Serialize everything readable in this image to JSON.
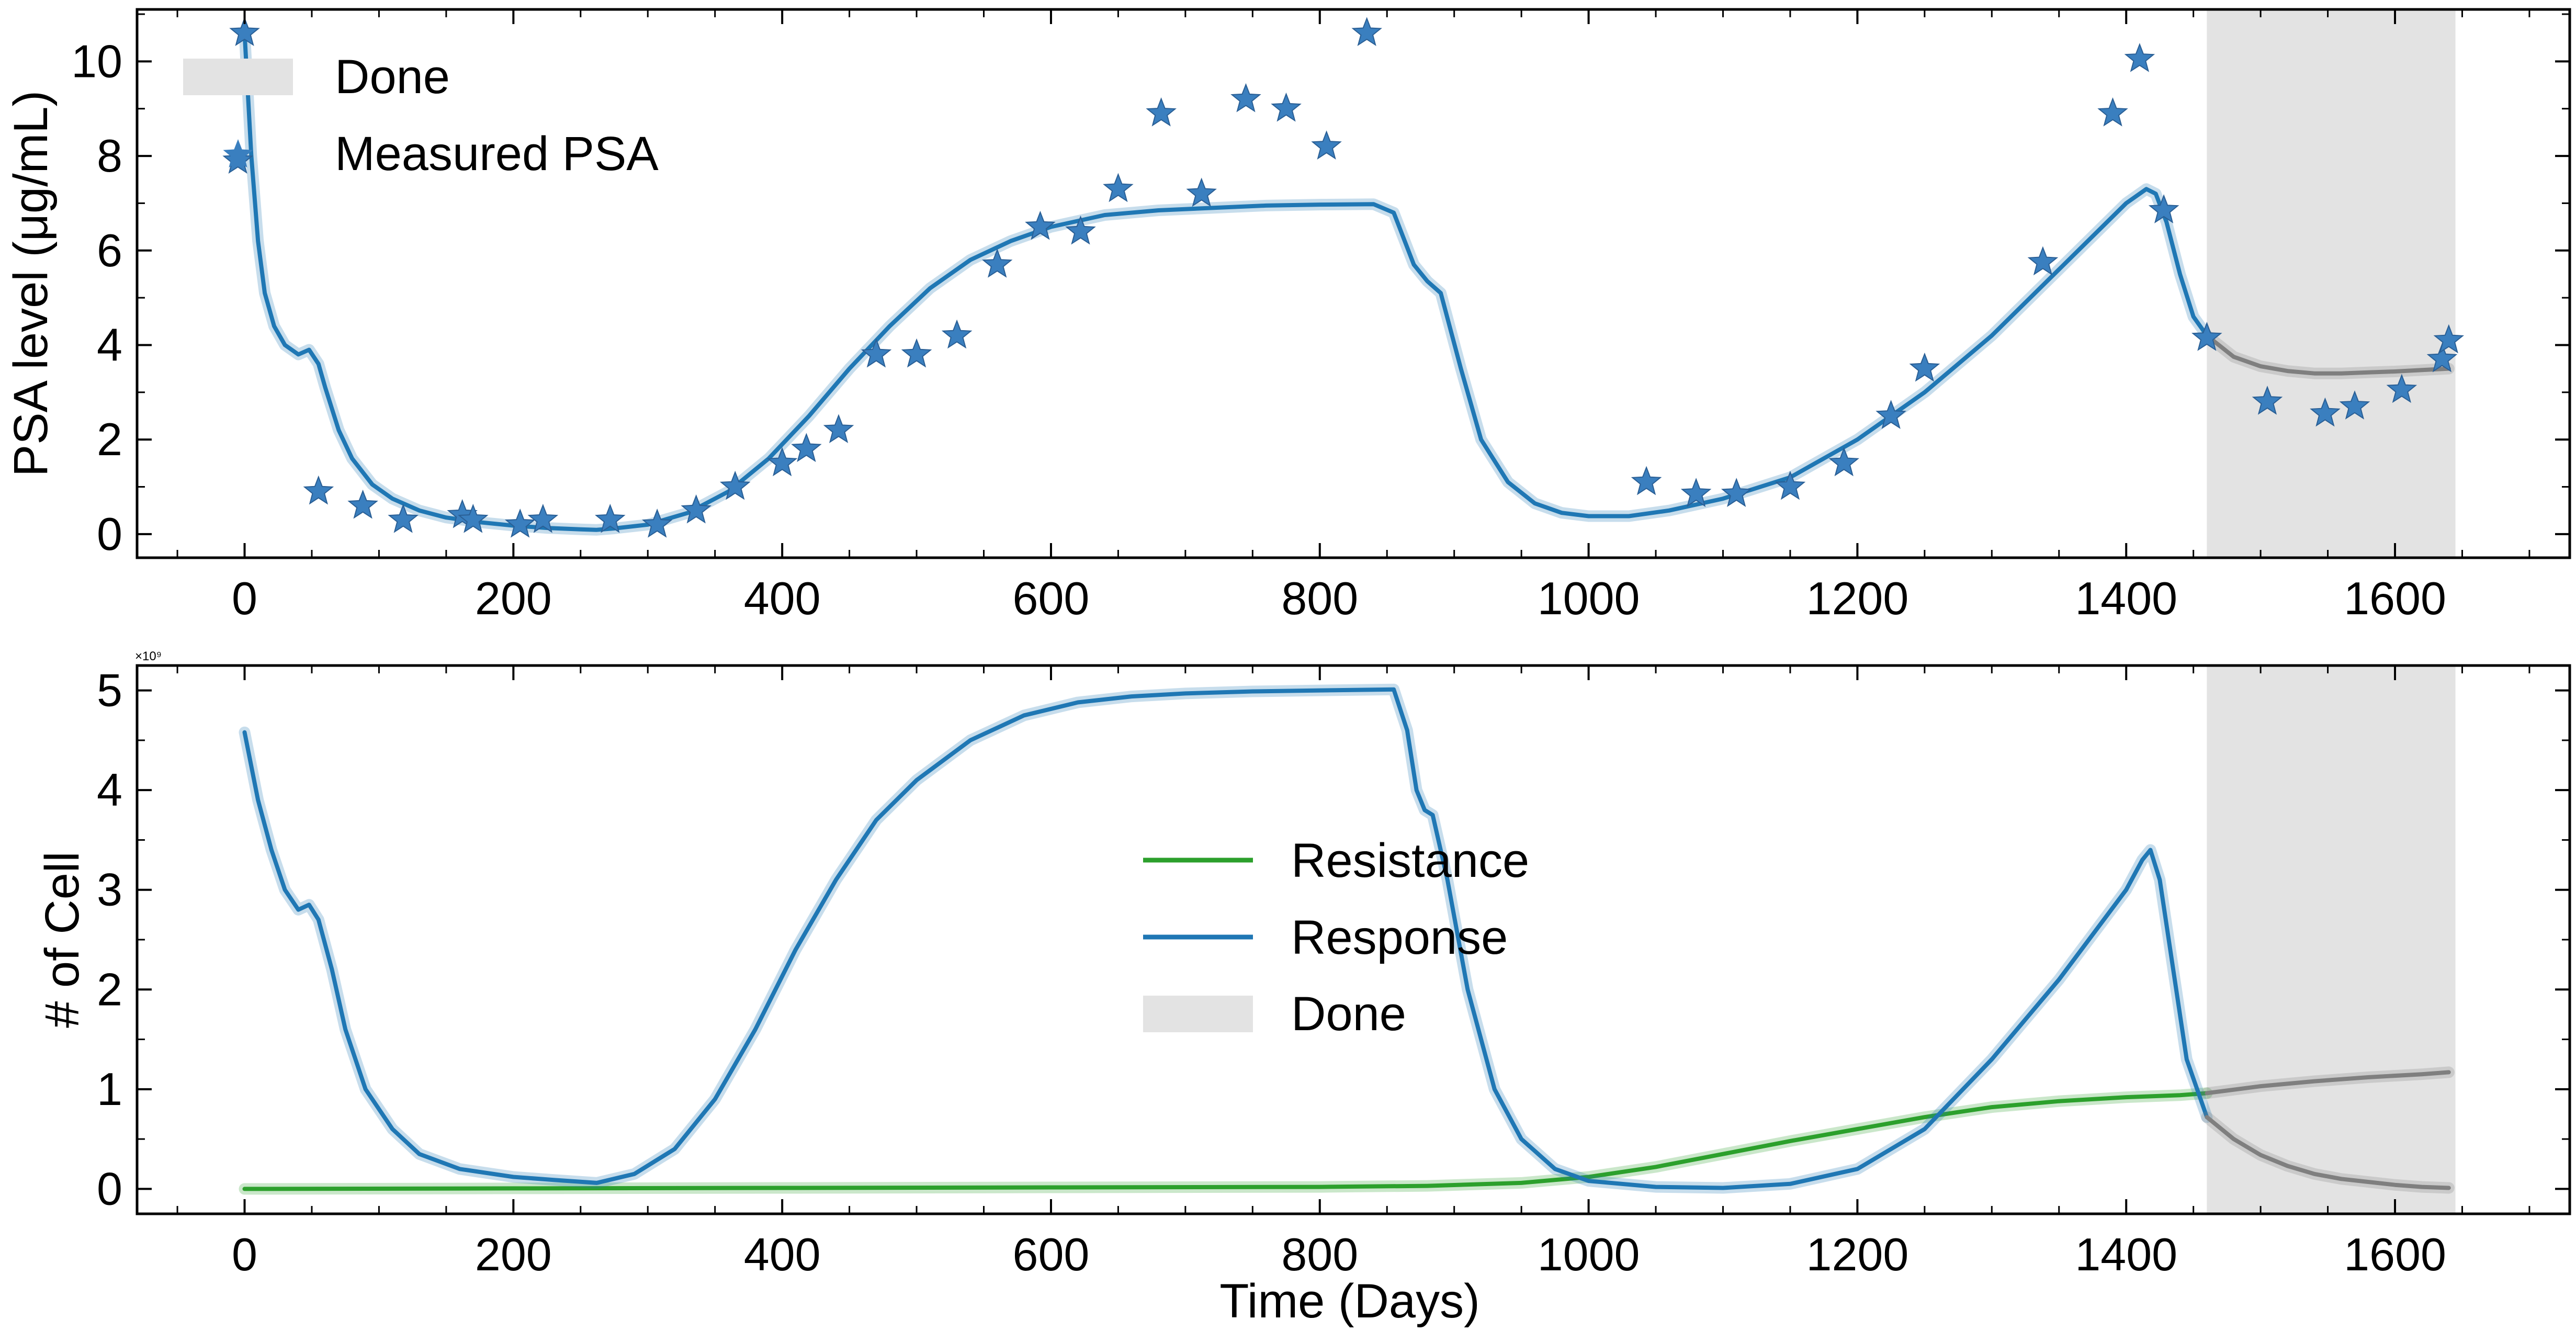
{
  "chart_data": [
    {
      "type": "line",
      "panel": "top",
      "xlabel": "",
      "ylabel": "PSA level (μg/mL)",
      "xlim": [
        -80,
        1730
      ],
      "ylim": [
        -0.5,
        11.1
      ],
      "xticks": [
        0,
        200,
        400,
        600,
        800,
        1000,
        1200,
        1400,
        1600
      ],
      "yticks": [
        0,
        2,
        4,
        6,
        8,
        10
      ],
      "grid": false,
      "legend_position": "top-left",
      "shaded_region": {
        "x0": 1460,
        "x1": 1645,
        "label": "Done",
        "color": "#e3e3e3"
      },
      "series": [
        {
          "name": "",
          "color": "#1f77b4",
          "x": [
            0,
            5,
            10,
            15,
            22,
            30,
            40,
            48,
            55,
            60,
            70,
            80,
            95,
            110,
            130,
            150,
            175,
            200,
            225,
            250,
            262,
            275,
            300,
            330,
            360,
            390,
            420,
            450,
            480,
            510,
            540,
            570,
            600,
            640,
            680,
            720,
            760,
            800,
            840,
            855,
            870,
            880,
            890,
            905,
            920,
            940,
            960,
            980,
            1000,
            1030,
            1060,
            1100,
            1150,
            1200,
            1250,
            1300,
            1350,
            1400,
            1415,
            1422,
            1430,
            1440,
            1450,
            1460
          ],
          "values": [
            10.6,
            8.0,
            6.2,
            5.1,
            4.4,
            4.0,
            3.8,
            3.9,
            3.6,
            3.1,
            2.2,
            1.6,
            1.05,
            0.75,
            0.5,
            0.35,
            0.25,
            0.18,
            0.13,
            0.1,
            0.09,
            0.12,
            0.2,
            0.45,
            0.9,
            1.6,
            2.5,
            3.5,
            4.4,
            5.2,
            5.8,
            6.2,
            6.5,
            6.75,
            6.85,
            6.9,
            6.95,
            6.97,
            6.98,
            6.8,
            5.7,
            5.35,
            5.1,
            3.5,
            2.0,
            1.1,
            0.65,
            0.45,
            0.38,
            0.38,
            0.5,
            0.75,
            1.2,
            2.0,
            3.0,
            4.2,
            5.6,
            7.0,
            7.3,
            7.2,
            6.6,
            5.5,
            4.6,
            4.2
          ]
        },
        {
          "name": "",
          "color": "#7f7f7f",
          "x": [
            1460,
            1480,
            1500,
            1520,
            1540,
            1560,
            1580,
            1600,
            1620,
            1640
          ],
          "values": [
            4.2,
            3.75,
            3.55,
            3.45,
            3.4,
            3.4,
            3.42,
            3.44,
            3.47,
            3.5
          ]
        },
        {
          "name": "Measured PSA",
          "type": "scatter",
          "marker": "star",
          "color": "#3a7fbf",
          "x": [
            -5,
            0,
            55,
            88,
            118,
            162,
            170,
            205,
            222,
            272,
            307,
            336,
            365,
            400,
            418,
            442,
            470,
            500,
            530,
            560,
            592,
            622,
            650,
            682,
            712,
            745,
            775,
            805,
            835,
            1043,
            1080,
            1110,
            1150,
            1190,
            1225,
            1250,
            1338,
            1390,
            1410,
            1428,
            1460,
            1505,
            1548,
            1570,
            1605,
            1635,
            1640
          ],
          "values": [
            7.9,
            10.6,
            0.9,
            0.6,
            0.3,
            0.4,
            0.3,
            0.2,
            0.3,
            0.3,
            0.2,
            0.5,
            1.0,
            1.5,
            1.8,
            2.2,
            3.8,
            3.8,
            4.2,
            5.7,
            6.5,
            6.4,
            7.3,
            8.9,
            7.2,
            9.2,
            9.0,
            8.2,
            10.6,
            1.1,
            0.85,
            0.85,
            1.0,
            1.5,
            2.5,
            3.5,
            5.75,
            8.9,
            10.05,
            6.85,
            4.15,
            2.8,
            2.55,
            2.7,
            3.05,
            3.7,
            4.1
          ]
        }
      ],
      "legend": [
        "Done",
        "Measured PSA"
      ]
    },
    {
      "type": "line",
      "panel": "bottom",
      "xlabel": "Time (Days)",
      "ylabel": "# of Cell",
      "exponent_label": "×10⁹",
      "xlim": [
        -80,
        1730
      ],
      "ylim": [
        -0.25,
        5.25
      ],
      "xticks": [
        0,
        200,
        400,
        600,
        800,
        1000,
        1200,
        1400,
        1600
      ],
      "yticks": [
        0,
        1,
        2,
        3,
        4,
        5
      ],
      "grid": false,
      "legend_position": "center",
      "shaded_region": {
        "x0": 1460,
        "x1": 1645,
        "label": "Done",
        "color": "#e3e3e3"
      },
      "series": [
        {
          "name": "Resistance",
          "color": "#2ca02c",
          "x": [
            0,
            200,
            400,
            600,
            800,
            880,
            950,
            1000,
            1050,
            1100,
            1150,
            1200,
            1250,
            1300,
            1350,
            1400,
            1440,
            1460
          ],
          "values": [
            0.0,
            0.005,
            0.01,
            0.015,
            0.02,
            0.03,
            0.06,
            0.12,
            0.22,
            0.35,
            0.48,
            0.6,
            0.72,
            0.82,
            0.88,
            0.92,
            0.94,
            0.96
          ]
        },
        {
          "name": "Response",
          "color": "#1f77b4",
          "x": [
            0,
            10,
            20,
            30,
            40,
            48,
            55,
            65,
            75,
            90,
            110,
            130,
            160,
            200,
            230,
            262,
            290,
            320,
            350,
            380,
            410,
            440,
            470,
            500,
            540,
            580,
            620,
            660,
            700,
            750,
            800,
            855,
            865,
            872,
            878,
            884,
            895,
            910,
            930,
            950,
            975,
            1000,
            1050,
            1100,
            1150,
            1200,
            1250,
            1300,
            1350,
            1400,
            1412,
            1418,
            1425,
            1435,
            1445,
            1460
          ],
          "values": [
            4.58,
            3.9,
            3.4,
            3.0,
            2.8,
            2.85,
            2.7,
            2.2,
            1.6,
            1.0,
            0.6,
            0.35,
            0.2,
            0.12,
            0.09,
            0.06,
            0.15,
            0.4,
            0.9,
            1.6,
            2.4,
            3.1,
            3.7,
            4.1,
            4.5,
            4.75,
            4.88,
            4.94,
            4.97,
            4.99,
            5.0,
            5.01,
            4.6,
            4.0,
            3.8,
            3.75,
            3.1,
            2.0,
            1.0,
            0.5,
            0.2,
            0.08,
            0.02,
            0.01,
            0.05,
            0.2,
            0.6,
            1.3,
            2.1,
            3.0,
            3.3,
            3.4,
            3.1,
            2.2,
            1.3,
            0.72
          ]
        },
        {
          "name": "",
          "color": "#7f7f7f",
          "x": [
            1460,
            1480,
            1500,
            1520,
            1540,
            1560,
            1580,
            1600,
            1620,
            1640
          ],
          "values": [
            0.72,
            0.5,
            0.34,
            0.23,
            0.15,
            0.1,
            0.07,
            0.04,
            0.02,
            0.01
          ]
        },
        {
          "name": "",
          "color": "#7f7f7f",
          "x": [
            1460,
            1500,
            1540,
            1580,
            1620,
            1640
          ],
          "values": [
            0.96,
            1.03,
            1.08,
            1.12,
            1.15,
            1.17
          ]
        }
      ],
      "legend": [
        "Resistance",
        "Response",
        "Done"
      ]
    }
  ]
}
